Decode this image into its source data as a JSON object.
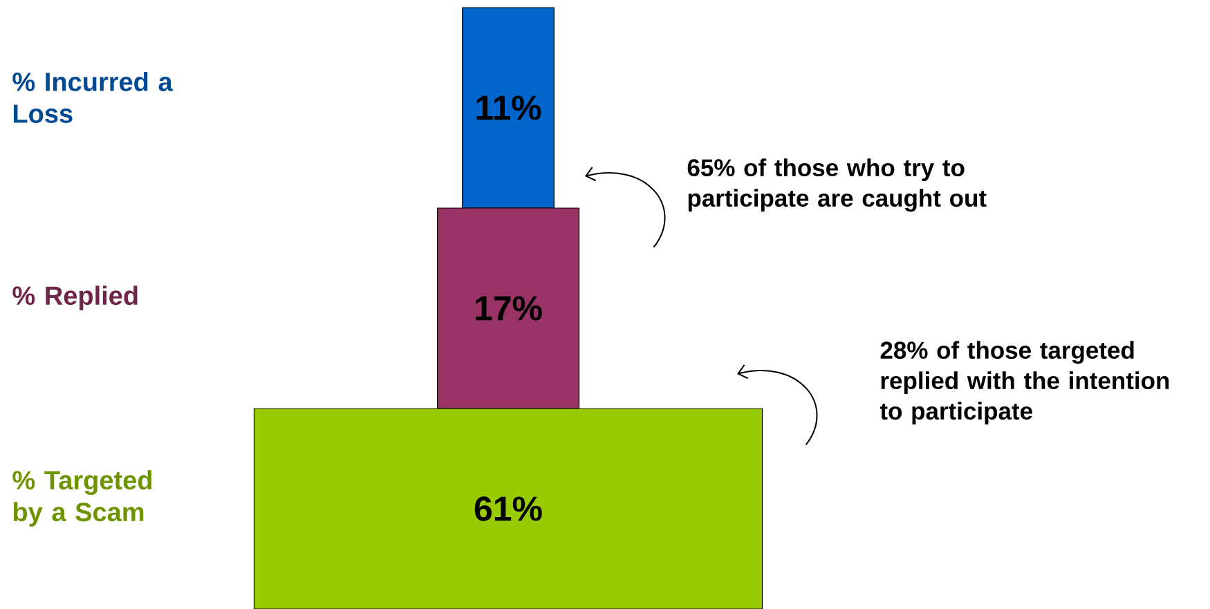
{
  "chart_data": {
    "type": "other",
    "categories": [
      "% Incurred a Loss",
      "% Replied",
      "% Targeted by a Scam"
    ],
    "values": [
      11,
      17,
      61
    ],
    "value_labels": [
      "11%",
      "17%",
      "61%"
    ],
    "colors": [
      "#0066cc",
      "#993366",
      "#99cc00"
    ],
    "annotations": [
      "65% of those who try to participate are caught out",
      "28% of those targeted replied with the intention to participate"
    ]
  }
}
